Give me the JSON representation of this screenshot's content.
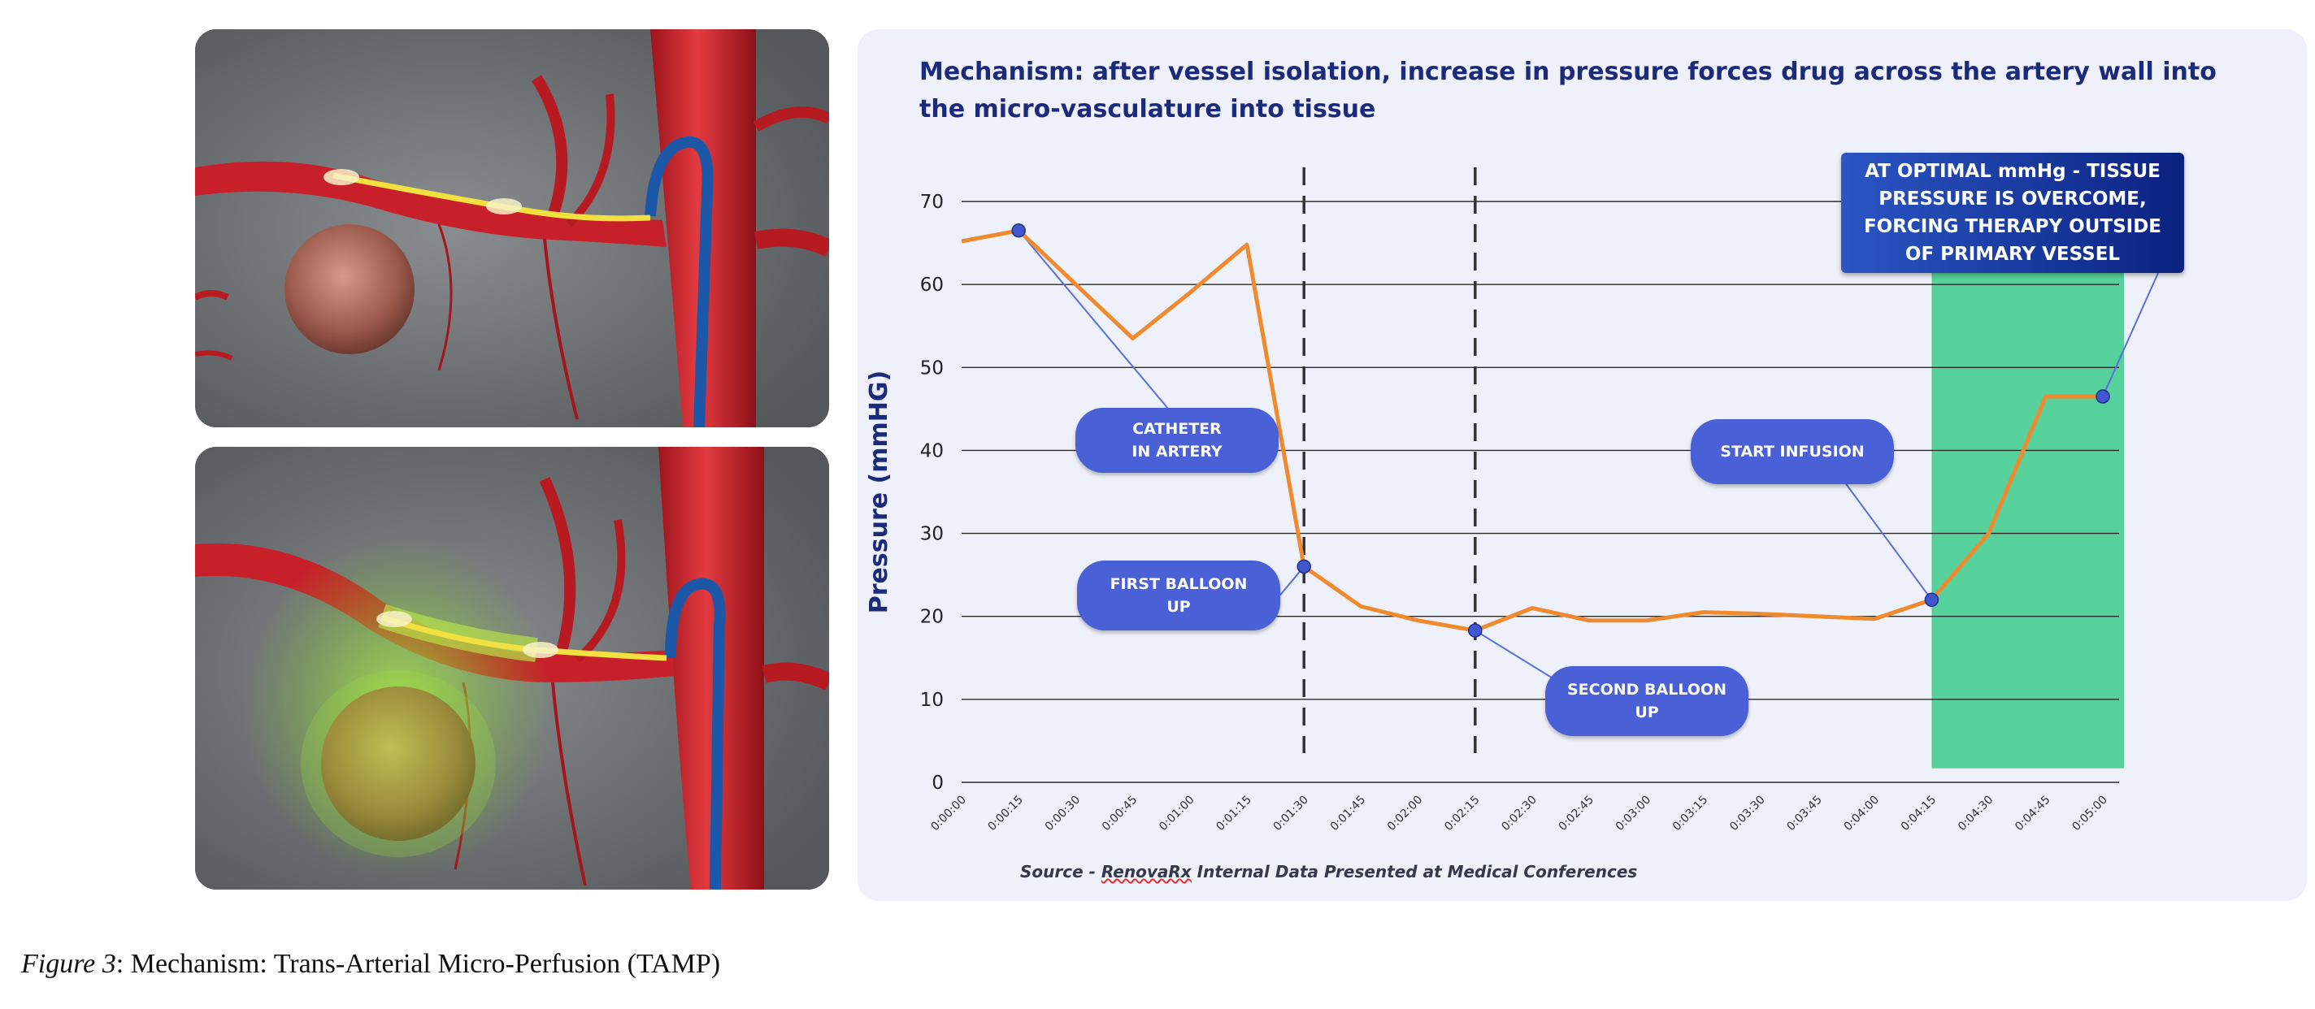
{
  "chart_data": {
    "type": "line",
    "title": "Mechanism: after vessel isolation, increase in pressure forces drug across the artery wall into the micro-vasculature into tissue",
    "ylabel": "Pressure (mmHG)",
    "xlabel": "",
    "ylim": [
      0,
      70
    ],
    "yticks": [
      "0",
      "10",
      "20",
      "30",
      "40",
      "50",
      "60",
      "70"
    ],
    "grid": true,
    "categories": [
      "0:00:00",
      "0:00:15",
      "0:00:30",
      "0:00:45",
      "0:01:00",
      "0:01:15",
      "0:01:30",
      "0:01:45",
      "0:02:00",
      "0:02:15",
      "0:02:30",
      "0:02:45",
      "0:03:00",
      "0:03:15",
      "0:03:30",
      "0:03:45",
      "0:04:00",
      "0:04:15",
      "0:04:30",
      "0:04:45",
      "0:05:00"
    ],
    "series": [
      {
        "color": "#f08a2e",
        "points": [
          [
            "0:00:00",
            65.2
          ],
          [
            "0:00:15",
            66.5
          ],
          [
            "0:00:22",
            63.5
          ],
          [
            "0:00:30",
            60.0
          ],
          [
            "0:00:45",
            53.5
          ],
          [
            "0:01:00",
            59.0
          ],
          [
            "0:01:15",
            64.8
          ],
          [
            "0:01:30",
            26.0
          ],
          [
            "0:01:45",
            21.2
          ],
          [
            "0:02:00",
            19.5
          ],
          [
            "0:02:15",
            18.3
          ],
          [
            "0:02:30",
            21.0
          ],
          [
            "0:02:45",
            19.5
          ],
          [
            "0:03:00",
            19.5
          ],
          [
            "0:03:15",
            20.5
          ],
          [
            "0:03:30",
            20.3
          ],
          [
            "0:03:45",
            20.0
          ],
          [
            "0:04:00",
            19.7
          ],
          [
            "0:04:15",
            22.0
          ],
          [
            "0:04:30",
            30.0
          ],
          [
            "0:04:45",
            46.5
          ],
          [
            "0:05:00",
            46.5
          ]
        ]
      }
    ],
    "marked_points": [
      {
        "x": "0:00:15",
        "y": 66.5
      },
      {
        "x": "0:01:30",
        "y": 26.0
      },
      {
        "x": "0:02:15",
        "y": 18.3
      },
      {
        "x": "0:04:15",
        "y": 22.0
      },
      {
        "x": "0:05:00",
        "y": 46.5
      }
    ],
    "vertical_dashed_lines_at": [
      "0:01:30",
      "0:02:15"
    ],
    "shaded_region": {
      "from": "0:04:15",
      "to": "0:05:00",
      "color": "#56d19b"
    },
    "annotations": [
      {
        "id": "catheter",
        "text": "CATHETER\nIN ARTERY"
      },
      {
        "id": "first-balloon",
        "text": "FIRST BALLOON\nUP"
      },
      {
        "id": "second-balloon",
        "text": "SECOND BALLOON\nUP"
      },
      {
        "id": "start-infusion",
        "text": "START INFUSION"
      },
      {
        "id": "optimal",
        "text": "AT OPTIMAL mmHg - TISSUE PRESSURE IS OVERCOME, FORCING THERAPY OUTSIDE OF PRIMARY VESSEL"
      }
    ],
    "source": {
      "prefix": "Source - ",
      "brand": "RenovaRx",
      "rest": " Internal Data Presented at Medical Conferences"
    }
  },
  "caption": {
    "label": "Figure 3",
    "text": ": Mechanism: Trans-Arterial Micro-Perfusion (TAMP)"
  },
  "colors": {
    "line": "#f08a2e",
    "marker": "#3f57cf",
    "callout": "#4a60d6",
    "title": "#1b2a7a",
    "panel": "#eef0fa",
    "artery": "#c8202a",
    "catheter": "#2266b8",
    "guidewire": "#f0e040",
    "drug_cloud": "#7fcf3a"
  }
}
